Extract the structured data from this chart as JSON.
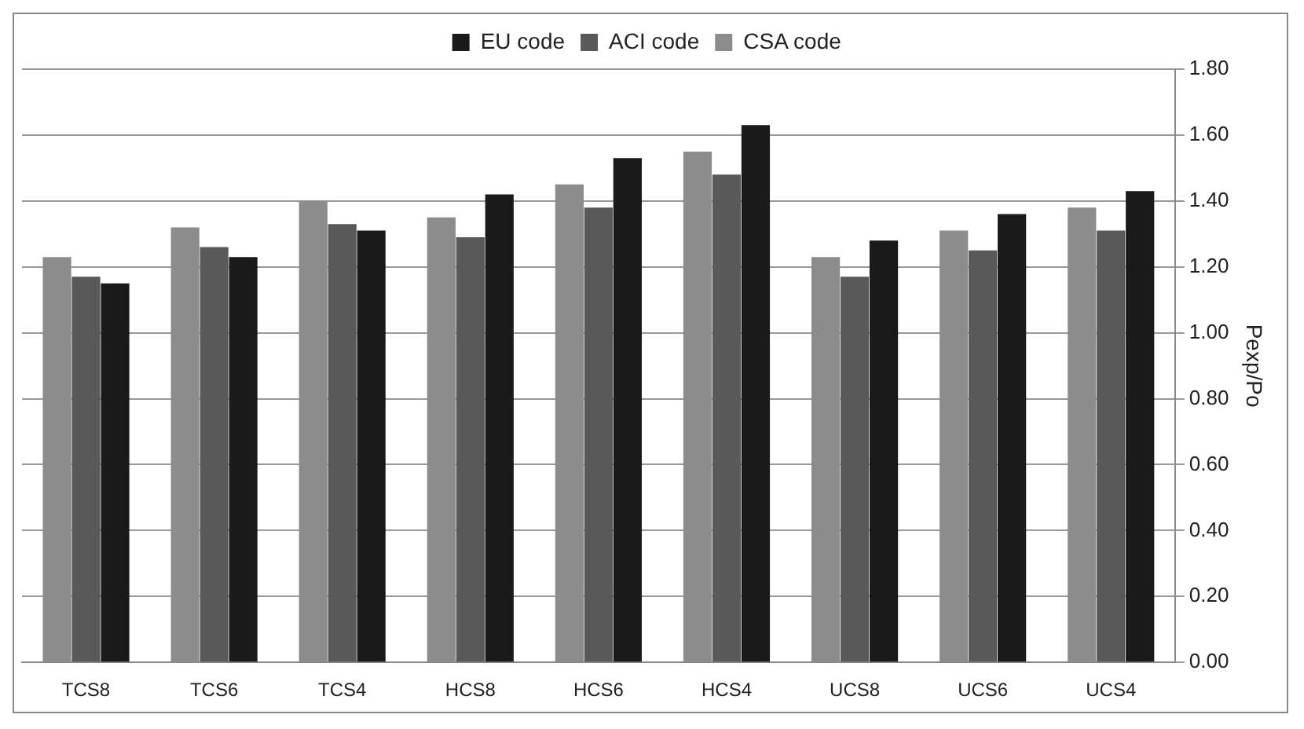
{
  "chart_data": {
    "type": "bar",
    "ylabel": "Pexp/Po",
    "categories": [
      "TCS8",
      "TCS6",
      "TCS4",
      "HCS8",
      "HCS6",
      "HCS4",
      "UCS8",
      "UCS6",
      "UCS4"
    ],
    "series": [
      {
        "name": "CSA code",
        "color": "#8c8c8c",
        "values": [
          1.23,
          1.32,
          1.4,
          1.35,
          1.45,
          1.55,
          1.23,
          1.31,
          1.38
        ]
      },
      {
        "name": "ACI code",
        "color": "#595959",
        "values": [
          1.17,
          1.26,
          1.33,
          1.29,
          1.38,
          1.48,
          1.17,
          1.25,
          1.31
        ]
      },
      {
        "name": "EU code",
        "color": "#1a1a1a",
        "values": [
          1.15,
          1.23,
          1.31,
          1.42,
          1.53,
          1.63,
          1.28,
          1.36,
          1.43
        ]
      }
    ],
    "ylim": [
      0,
      1.8
    ],
    "yticks": [
      {
        "value": 0,
        "label": "0.00"
      },
      {
        "value": 0.2,
        "label": "0.20"
      },
      {
        "value": 0.4,
        "label": "0.40"
      },
      {
        "value": 0.6,
        "label": "0.60"
      },
      {
        "value": 0.8,
        "label": "0.80"
      },
      {
        "value": 1,
        "label": "1.00"
      },
      {
        "value": 1.2,
        "label": "1.20"
      },
      {
        "value": 1.4,
        "label": "1.40"
      },
      {
        "value": 1.6,
        "label": "1.60"
      },
      {
        "value": 1.8,
        "label": "1.80"
      }
    ],
    "grid": "y",
    "legend": "top"
  }
}
